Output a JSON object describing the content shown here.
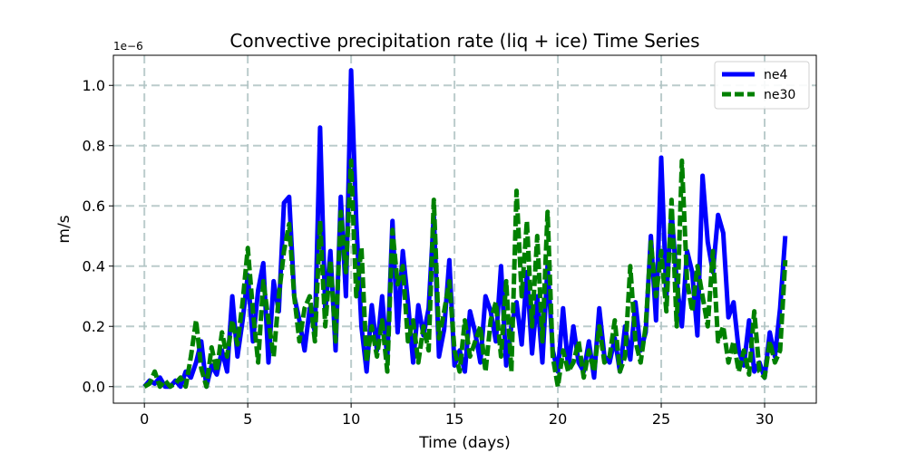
{
  "chart_data": {
    "type": "line",
    "title": "Convective precipitation rate (liq + ice) Time Series",
    "xlabel": "Time (days)",
    "ylabel": "m/s",
    "y_offset_text": "1e−6",
    "xlim": [
      -1.5,
      32.5
    ],
    "ylim": [
      -0.055,
      1.1
    ],
    "xticks": [
      0,
      5,
      10,
      15,
      20,
      25,
      30
    ],
    "xtick_labels": [
      "0",
      "5",
      "10",
      "15",
      "20",
      "25",
      "30"
    ],
    "yticks": [
      0.0,
      0.2,
      0.4,
      0.6,
      0.8,
      1.0
    ],
    "ytick_labels": [
      "0.0",
      "0.2",
      "0.4",
      "0.6",
      "0.8",
      "1.0"
    ],
    "grid": true,
    "legend_position": "top-right",
    "series": [
      {
        "name": "ne4",
        "color": "#0000ff",
        "style": "solid",
        "x": [
          0,
          0.25,
          0.5,
          0.75,
          1.0,
          1.25,
          1.5,
          1.75,
          2.0,
          2.25,
          2.5,
          2.75,
          3.0,
          3.25,
          3.5,
          3.75,
          4.0,
          4.25,
          4.5,
          4.75,
          5.0,
          5.25,
          5.5,
          5.75,
          6.0,
          6.25,
          6.5,
          6.75,
          7.0,
          7.25,
          7.5,
          7.75,
          8.0,
          8.25,
          8.5,
          8.75,
          9.0,
          9.25,
          9.5,
          9.75,
          10.0,
          10.25,
          10.5,
          10.75,
          11.0,
          11.25,
          11.5,
          11.75,
          12.0,
          12.25,
          12.5,
          12.75,
          13.0,
          13.25,
          13.5,
          13.75,
          14.0,
          14.25,
          14.5,
          14.75,
          15.0,
          15.25,
          15.5,
          15.75,
          16.0,
          16.25,
          16.5,
          16.75,
          17.0,
          17.25,
          17.5,
          17.75,
          18.0,
          18.25,
          18.5,
          18.75,
          19.0,
          19.25,
          19.5,
          19.75,
          20.0,
          20.25,
          20.5,
          20.75,
          21.0,
          21.25,
          21.5,
          21.75,
          22.0,
          22.25,
          22.5,
          22.75,
          23.0,
          23.25,
          23.5,
          23.75,
          24.0,
          24.25,
          24.5,
          24.75,
          25.0,
          25.25,
          25.5,
          25.75,
          26.0,
          26.25,
          26.5,
          26.75,
          27.0,
          27.25,
          27.5,
          27.75,
          28.0,
          28.25,
          28.5,
          28.75,
          29.0,
          29.25,
          29.5,
          29.75,
          30.0,
          30.25,
          30.5,
          30.75,
          31.0
        ],
        "values": [
          0.0,
          0.02,
          0.01,
          0.03,
          0.0,
          0.0,
          0.02,
          0.0,
          0.05,
          0.03,
          0.08,
          0.15,
          0.0,
          0.07,
          0.04,
          0.12,
          0.05,
          0.3,
          0.1,
          0.22,
          0.37,
          0.15,
          0.32,
          0.41,
          0.08,
          0.35,
          0.25,
          0.61,
          0.63,
          0.3,
          0.22,
          0.12,
          0.26,
          0.18,
          0.86,
          0.25,
          0.45,
          0.12,
          0.63,
          0.3,
          1.05,
          0.55,
          0.2,
          0.05,
          0.27,
          0.12,
          0.3,
          0.09,
          0.55,
          0.18,
          0.45,
          0.28,
          0.08,
          0.27,
          0.17,
          0.26,
          0.57,
          0.1,
          0.19,
          0.42,
          0.07,
          0.12,
          0.05,
          0.25,
          0.18,
          0.08,
          0.3,
          0.25,
          0.15,
          0.4,
          0.07,
          0.2,
          0.28,
          0.14,
          0.38,
          0.11,
          0.3,
          0.08,
          0.4,
          0.12,
          0.05,
          0.26,
          0.06,
          0.2,
          0.08,
          0.05,
          0.15,
          0.03,
          0.26,
          0.1,
          0.08,
          0.16,
          0.05,
          0.2,
          0.09,
          0.28,
          0.12,
          0.18,
          0.5,
          0.22,
          0.76,
          0.3,
          0.58,
          0.35,
          0.2,
          0.45,
          0.38,
          0.17,
          0.7,
          0.48,
          0.38,
          0.57,
          0.51,
          0.23,
          0.28,
          0.12,
          0.07,
          0.22,
          0.05,
          0.08,
          0.03,
          0.18,
          0.1,
          0.26,
          0.5
        ],
        "display": "ne4"
      },
      {
        "name": "ne30",
        "color": "#008000",
        "style": "dashed",
        "x": [
          0,
          0.25,
          0.5,
          0.75,
          1.0,
          1.25,
          1.5,
          1.75,
          2.0,
          2.25,
          2.5,
          2.75,
          3.0,
          3.25,
          3.5,
          3.75,
          4.0,
          4.25,
          4.5,
          4.75,
          5.0,
          5.25,
          5.5,
          5.75,
          6.0,
          6.25,
          6.5,
          6.75,
          7.0,
          7.25,
          7.5,
          7.75,
          8.0,
          8.25,
          8.5,
          8.75,
          9.0,
          9.25,
          9.5,
          9.75,
          10.0,
          10.25,
          10.5,
          10.75,
          11.0,
          11.25,
          11.5,
          11.75,
          12.0,
          12.25,
          12.5,
          12.75,
          13.0,
          13.25,
          13.5,
          13.75,
          14.0,
          14.25,
          14.5,
          14.75,
          15.0,
          15.25,
          15.5,
          15.75,
          16.0,
          16.25,
          16.5,
          16.75,
          17.0,
          17.25,
          17.5,
          17.75,
          18.0,
          18.25,
          18.5,
          18.75,
          19.0,
          19.25,
          19.5,
          19.75,
          20.0,
          20.25,
          20.5,
          20.75,
          21.0,
          21.25,
          21.5,
          21.75,
          22.0,
          22.25,
          22.5,
          22.75,
          23.0,
          23.25,
          23.5,
          23.75,
          24.0,
          24.25,
          24.5,
          24.75,
          25.0,
          25.25,
          25.5,
          25.75,
          26.0,
          26.25,
          26.5,
          26.75,
          27.0,
          27.25,
          27.5,
          27.75,
          28.0,
          28.25,
          28.5,
          28.75,
          29.0,
          29.25,
          29.5,
          29.75,
          30.0,
          30.25,
          30.5,
          30.75,
          31.0
        ],
        "values": [
          0.0,
          0.01,
          0.05,
          0.0,
          0.02,
          0.0,
          0.01,
          0.03,
          0.0,
          0.1,
          0.22,
          0.06,
          0.0,
          0.13,
          0.05,
          0.18,
          0.1,
          0.22,
          0.14,
          0.28,
          0.46,
          0.25,
          0.08,
          0.35,
          0.22,
          0.1,
          0.3,
          0.45,
          0.54,
          0.3,
          0.15,
          0.26,
          0.3,
          0.15,
          0.55,
          0.2,
          0.42,
          0.15,
          0.58,
          0.38,
          0.75,
          0.3,
          0.46,
          0.08,
          0.2,
          0.1,
          0.22,
          0.05,
          0.52,
          0.34,
          0.4,
          0.15,
          0.22,
          0.08,
          0.2,
          0.12,
          0.62,
          0.16,
          0.25,
          0.35,
          0.12,
          0.05,
          0.22,
          0.1,
          0.15,
          0.2,
          0.05,
          0.22,
          0.28,
          0.1,
          0.35,
          0.05,
          0.65,
          0.3,
          0.55,
          0.2,
          0.5,
          0.15,
          0.58,
          0.1,
          0.0,
          0.12,
          0.05,
          0.08,
          0.15,
          0.03,
          0.12,
          0.05,
          0.2,
          0.08,
          0.1,
          0.22,
          0.05,
          0.1,
          0.4,
          0.15,
          0.08,
          0.2,
          0.48,
          0.3,
          0.45,
          0.25,
          0.62,
          0.2,
          0.75,
          0.35,
          0.25,
          0.4,
          0.3,
          0.2,
          0.45,
          0.15,
          0.2,
          0.08,
          0.15,
          0.05,
          0.12,
          0.04,
          0.25,
          0.05,
          0.03,
          0.15,
          0.08,
          0.12,
          0.42
        ],
        "display": "ne30"
      }
    ]
  }
}
